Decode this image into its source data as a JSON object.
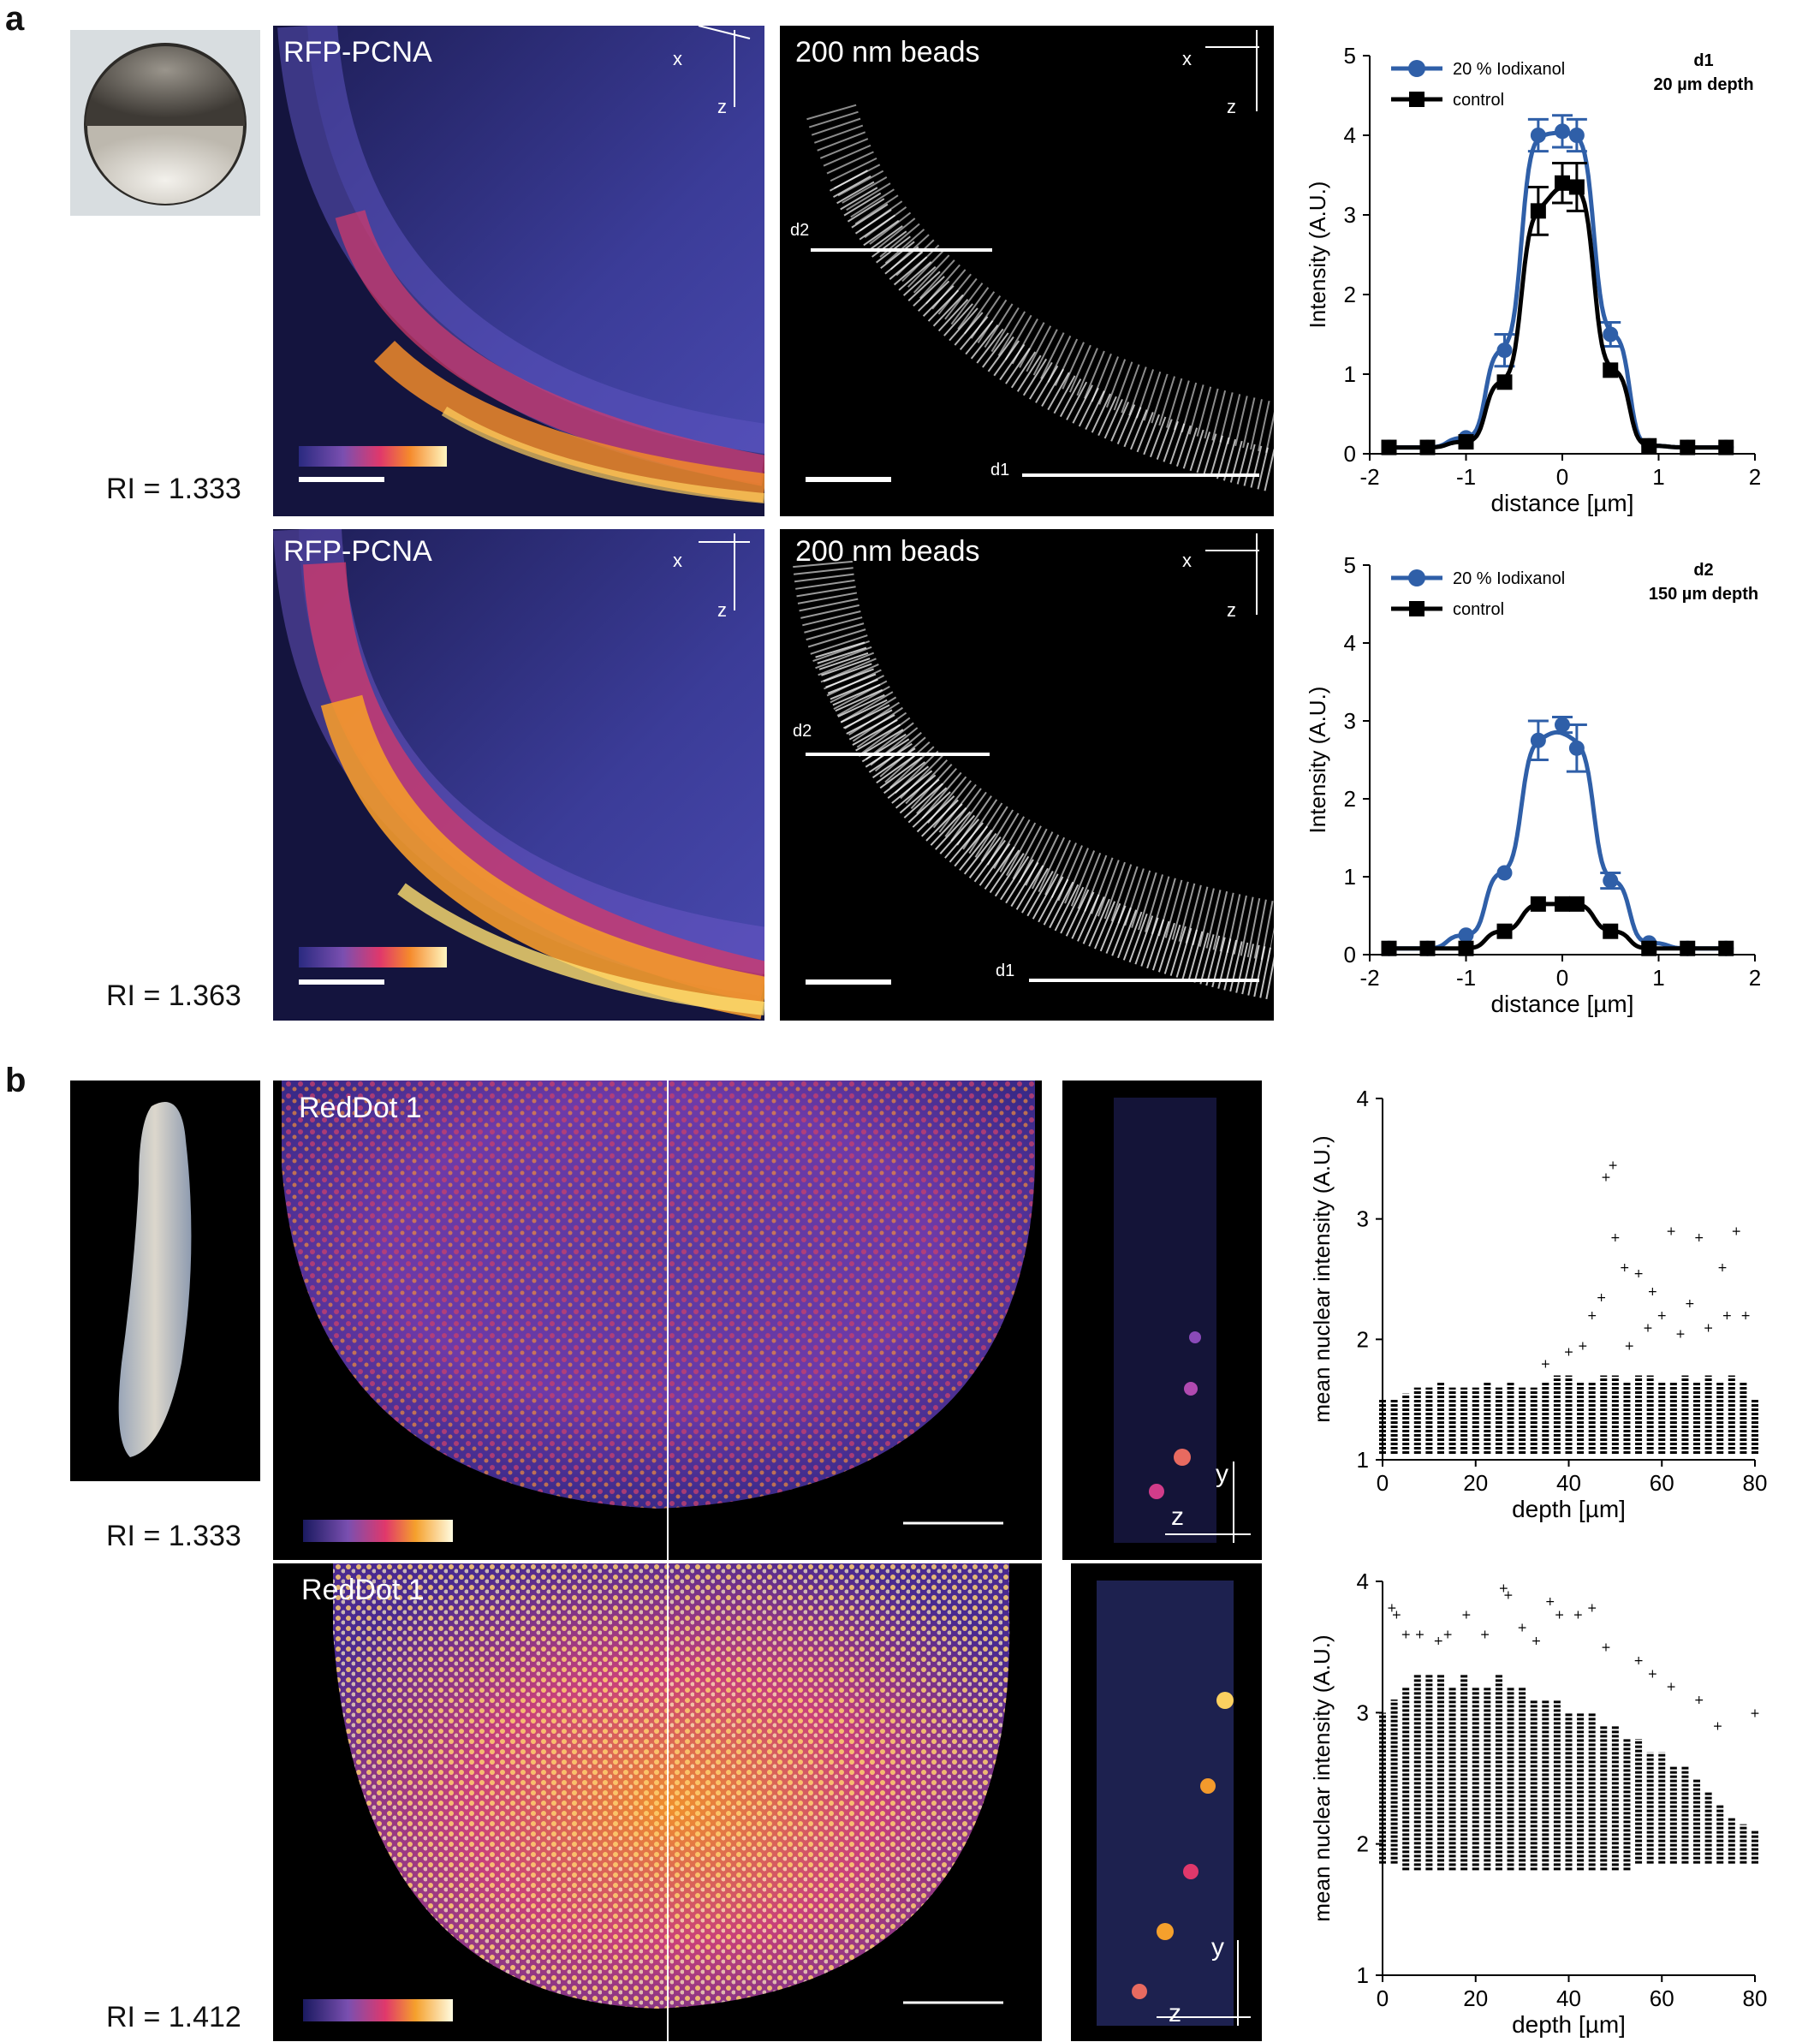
{
  "panels": {
    "a": {
      "letter": "a",
      "rows": [
        {
          "ri": "RI = 1.333",
          "fluor_title": "RFP-PCNA",
          "beads_title": "200 nm beads",
          "axis_x": "x",
          "axis_z": "z",
          "line_d1": "d1",
          "line_d2": "d2"
        },
        {
          "ri": "RI = 1.363",
          "fluor_title": "RFP-PCNA",
          "beads_title": "200 nm beads",
          "axis_x": "x",
          "axis_z": "z",
          "line_d1": "d1",
          "line_d2": "d2"
        }
      ]
    },
    "b": {
      "letter": "b",
      "rows": [
        {
          "ri": "RI = 1.333",
          "fluor_title": "RedDot 1",
          "axis_y": "y",
          "axis_z": "z"
        },
        {
          "ri": "RI = 1.412",
          "fluor_title": "RedDot 1",
          "axis_y": "y",
          "axis_z": "z"
        }
      ]
    }
  },
  "colors": {
    "blue_series": "#2f5fa8",
    "black_series": "#000000",
    "lut": [
      "#0b0b2a",
      "#3a3aa8",
      "#8a4fb0",
      "#e0386b",
      "#f58a2c",
      "#fbe46a",
      "#fffbe6"
    ]
  },
  "chart_data": [
    {
      "type": "line",
      "ylabel": "Intensity (A.U.)",
      "xlabel": "distance [µm]",
      "xlim": [
        -2,
        2
      ],
      "ylim": [
        0,
        5
      ],
      "xticks": [
        -2,
        -1,
        0,
        1,
        2
      ],
      "yticks": [
        0,
        1,
        2,
        3,
        4,
        5
      ],
      "annotation": [
        "d1",
        "20 µm depth"
      ],
      "legend_position": "top-left",
      "series": [
        {
          "name": "20 % Iodixanol",
          "x": [
            -1.8,
            -1.4,
            -1.0,
            -0.6,
            -0.25,
            0.0,
            0.15,
            0.5,
            0.9,
            1.3,
            1.7
          ],
          "y": [
            0.08,
            0.08,
            0.2,
            1.3,
            4.0,
            4.05,
            4.0,
            1.5,
            0.1,
            0.08,
            0.08
          ],
          "err": [
            0,
            0,
            0,
            0.2,
            0.2,
            0.2,
            0.2,
            0.15,
            0,
            0,
            0
          ]
        },
        {
          "name": "control",
          "x": [
            -1.8,
            -1.4,
            -1.0,
            -0.6,
            -0.25,
            0.0,
            0.15,
            0.5,
            0.9,
            1.3,
            1.7
          ],
          "y": [
            0.08,
            0.08,
            0.15,
            0.9,
            3.05,
            3.4,
            3.35,
            1.05,
            0.1,
            0.08,
            0.08
          ],
          "err": [
            0,
            0,
            0,
            0,
            0.3,
            0.25,
            0.3,
            0,
            0,
            0,
            0
          ]
        }
      ]
    },
    {
      "type": "line",
      "ylabel": "Intensity (A.U.)",
      "xlabel": "distance [µm]",
      "xlim": [
        -2,
        2
      ],
      "ylim": [
        0,
        5
      ],
      "xticks": [
        -2,
        -1,
        0,
        1,
        2
      ],
      "yticks": [
        0,
        1,
        2,
        3,
        4,
        5
      ],
      "annotation": [
        "d2",
        "150 µm depth"
      ],
      "legend_position": "top-left",
      "series": [
        {
          "name": "20 % Iodixanol",
          "x": [
            -1.8,
            -1.4,
            -1.0,
            -0.6,
            -0.25,
            0.0,
            0.15,
            0.5,
            0.9,
            1.3,
            1.7
          ],
          "y": [
            0.08,
            0.08,
            0.25,
            1.05,
            2.75,
            2.95,
            2.65,
            0.95,
            0.15,
            0.08,
            0.08
          ],
          "err": [
            0,
            0,
            0,
            0,
            0.25,
            0.1,
            0.3,
            0.1,
            0,
            0,
            0
          ]
        },
        {
          "name": "control",
          "x": [
            -1.8,
            -1.4,
            -1.0,
            -0.6,
            -0.25,
            0.0,
            0.15,
            0.5,
            0.9,
            1.3,
            1.7
          ],
          "y": [
            0.08,
            0.08,
            0.08,
            0.3,
            0.65,
            0.65,
            0.65,
            0.3,
            0.08,
            0.08,
            0.08
          ],
          "err": [
            0,
            0,
            0,
            0,
            0,
            0,
            0,
            0,
            0,
            0,
            0
          ]
        }
      ]
    },
    {
      "type": "scatter",
      "ylabel": "mean nuclear intensity (A.U.)",
      "xlabel": "depth [µm]",
      "xlim": [
        0,
        80
      ],
      "ylim": [
        1,
        4
      ],
      "xticks": [
        0,
        20,
        40,
        60,
        80
      ],
      "yticks": [
        1,
        2,
        3,
        4
      ],
      "series": [
        {
          "columns_x": [
            0,
            2.5,
            5,
            7.5,
            10,
            12.5,
            15,
            17.5,
            20,
            22.5,
            25,
            27.5,
            30,
            32.5,
            35,
            37.5,
            40,
            42.5,
            45,
            47.5,
            50,
            52.5,
            55,
            57.5,
            60,
            62.5,
            65,
            67.5,
            70,
            72.5,
            75,
            77.5,
            80
          ],
          "band_min": 1.05,
          "band_max": [
            1.5,
            1.5,
            1.55,
            1.6,
            1.6,
            1.65,
            1.6,
            1.6,
            1.6,
            1.65,
            1.6,
            1.65,
            1.6,
            1.6,
            1.65,
            1.7,
            1.7,
            1.65,
            1.65,
            1.7,
            1.7,
            1.65,
            1.7,
            1.7,
            1.65,
            1.65,
            1.7,
            1.65,
            1.7,
            1.65,
            1.7,
            1.65,
            1.5
          ],
          "outliers": [
            [
              48,
              3.35
            ],
            [
              49.5,
              3.45
            ],
            [
              50,
              2.85
            ],
            [
              52,
              2.6
            ],
            [
              55,
              2.55
            ],
            [
              58,
              2.4
            ],
            [
              62,
              2.9
            ],
            [
              66,
              2.3
            ],
            [
              68,
              2.85
            ],
            [
              73,
              2.6
            ],
            [
              76,
              2.9
            ],
            [
              78,
              2.2
            ],
            [
              45,
              2.2
            ],
            [
              47,
              2.35
            ],
            [
              57,
              2.1
            ],
            [
              60,
              2.2
            ],
            [
              64,
              2.05
            ],
            [
              70,
              2.1
            ],
            [
              74,
              2.2
            ],
            [
              35,
              1.8
            ],
            [
              40,
              1.9
            ],
            [
              43,
              1.95
            ],
            [
              53,
              1.95
            ]
          ]
        }
      ]
    },
    {
      "type": "scatter",
      "ylabel": "mean nuclear intensity (A.U.)",
      "xlabel": "depth [µm]",
      "xlim": [
        0,
        80
      ],
      "ylim": [
        1,
        4
      ],
      "xticks": [
        0,
        20,
        40,
        60,
        80
      ],
      "yticks": [
        1,
        2,
        3,
        4
      ],
      "series": [
        {
          "columns_x": [
            0,
            2.5,
            5,
            7.5,
            10,
            12.5,
            15,
            17.5,
            20,
            22.5,
            25,
            27.5,
            30,
            32.5,
            35,
            37.5,
            40,
            42.5,
            45,
            47.5,
            50,
            52.5,
            55,
            57.5,
            60,
            62.5,
            65,
            67.5,
            70,
            72.5,
            75,
            77.5,
            80
          ],
          "band_min": [
            1.85,
            1.85,
            1.8,
            1.8,
            1.8,
            1.8,
            1.8,
            1.8,
            1.8,
            1.8,
            1.8,
            1.8,
            1.8,
            1.8,
            1.8,
            1.8,
            1.8,
            1.8,
            1.8,
            1.8,
            1.8,
            1.8,
            1.85,
            1.85,
            1.85,
            1.85,
            1.85,
            1.85,
            1.85,
            1.85,
            1.85,
            1.85,
            1.85
          ],
          "band_max": [
            3.0,
            3.1,
            3.2,
            3.3,
            3.3,
            3.3,
            3.2,
            3.3,
            3.2,
            3.2,
            3.3,
            3.2,
            3.2,
            3.1,
            3.1,
            3.1,
            3.0,
            3.0,
            3.0,
            2.9,
            2.9,
            2.8,
            2.8,
            2.7,
            2.7,
            2.6,
            2.6,
            2.5,
            2.4,
            2.3,
            2.2,
            2.15,
            2.1
          ],
          "outliers": [
            [
              2,
              3.8
            ],
            [
              3,
              3.75
            ],
            [
              5,
              3.6
            ],
            [
              8,
              3.6
            ],
            [
              12,
              3.55
            ],
            [
              14,
              3.6
            ],
            [
              18,
              3.75
            ],
            [
              22,
              3.6
            ],
            [
              26,
              3.95
            ],
            [
              27,
              3.9
            ],
            [
              30,
              3.65
            ],
            [
              33,
              3.55
            ],
            [
              36,
              3.85
            ],
            [
              38,
              3.75
            ],
            [
              42,
              3.75
            ],
            [
              45,
              3.8
            ],
            [
              48,
              3.5
            ],
            [
              55,
              3.4
            ],
            [
              58,
              3.3
            ],
            [
              62,
              3.2
            ],
            [
              68,
              3.1
            ],
            [
              72,
              2.9
            ],
            [
              80,
              3.0
            ]
          ]
        }
      ]
    }
  ]
}
